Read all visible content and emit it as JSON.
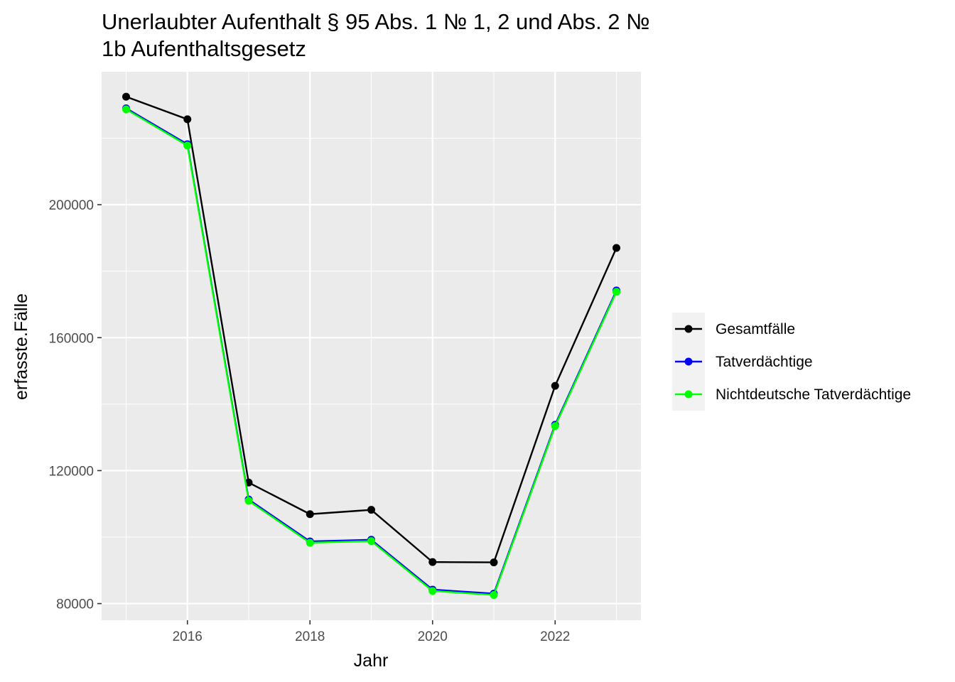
{
  "chart_data": {
    "type": "line",
    "title_lines": [
      "Unerlaubter Aufenthalt § 95 Abs. 1 № 1, 2 und Abs. 2 №",
      "1b Aufenthaltsgesetz"
    ],
    "xlabel": "Jahr",
    "ylabel": "erfasste.Fälle",
    "x": [
      2015,
      2016,
      2017,
      2018,
      2019,
      2020,
      2021,
      2022,
      2023
    ],
    "xlim": [
      2014.6,
      2023.4
    ],
    "ylim": [
      75000,
      240000
    ],
    "x_ticks": [
      2016,
      2018,
      2020,
      2022
    ],
    "x_tick_labels": [
      "2016",
      "2018",
      "2020",
      "2022"
    ],
    "y_ticks": [
      80000,
      120000,
      160000,
      200000
    ],
    "y_tick_labels": [
      "80000",
      "120000",
      "160000",
      "200000"
    ],
    "grid": true,
    "legend_position": "right",
    "background": "#ebebeb",
    "series": [
      {
        "name": "Gesamtfälle",
        "color": "#000000",
        "values": [
          232500,
          225700,
          116400,
          106900,
          108200,
          92500,
          92400,
          145500,
          187000
        ]
      },
      {
        "name": "Tatverdächtige",
        "color": "#0000ff",
        "values": [
          229000,
          218200,
          111300,
          98700,
          99200,
          84200,
          83000,
          133800,
          174200
        ]
      },
      {
        "name": "Nichtdeutsche Tatverdächtige",
        "color": "#00ff00",
        "values": [
          228700,
          217800,
          110900,
          98300,
          98800,
          83800,
          82600,
          133400,
          173800
        ]
      }
    ]
  }
}
